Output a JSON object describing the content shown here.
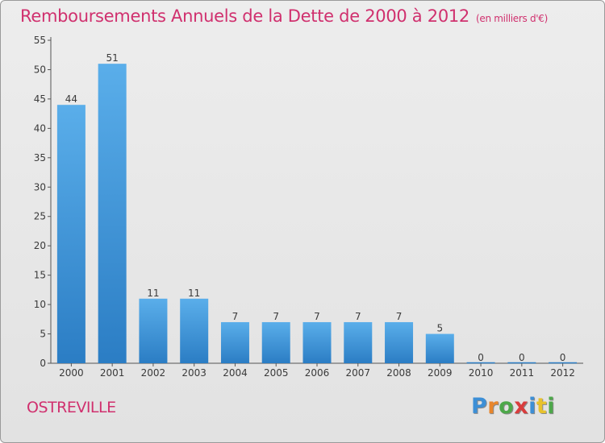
{
  "header": {
    "title": "Remboursements Annuels de la Dette de 2000 à 2012",
    "unit": "(en milliers d'€)"
  },
  "location": "OSTREVILLE",
  "brand": {
    "letters": [
      "P",
      "r",
      "o",
      "x",
      "i",
      "t",
      "i"
    ]
  },
  "colors": {
    "accent": "#d0306e",
    "bar_top": "#5aaeea",
    "bar_bottom": "#2b7dc4",
    "background": "#e6e6e6"
  },
  "chart_data": {
    "type": "bar",
    "title": "Remboursements Annuels de la Dette de 2000 à 2012",
    "subtitle": "(en milliers d'€)",
    "categories": [
      "2000",
      "2001",
      "2002",
      "2003",
      "2004",
      "2005",
      "2006",
      "2007",
      "2008",
      "2009",
      "2010",
      "2011",
      "2012"
    ],
    "values": [
      44,
      51,
      11,
      11,
      7,
      7,
      7,
      7,
      7,
      5,
      0,
      0,
      0
    ],
    "ylim": [
      0,
      55
    ],
    "yticks": [
      0,
      5,
      10,
      15,
      20,
      25,
      30,
      35,
      40,
      45,
      50,
      55
    ],
    "grid": false,
    "legend": "none"
  }
}
